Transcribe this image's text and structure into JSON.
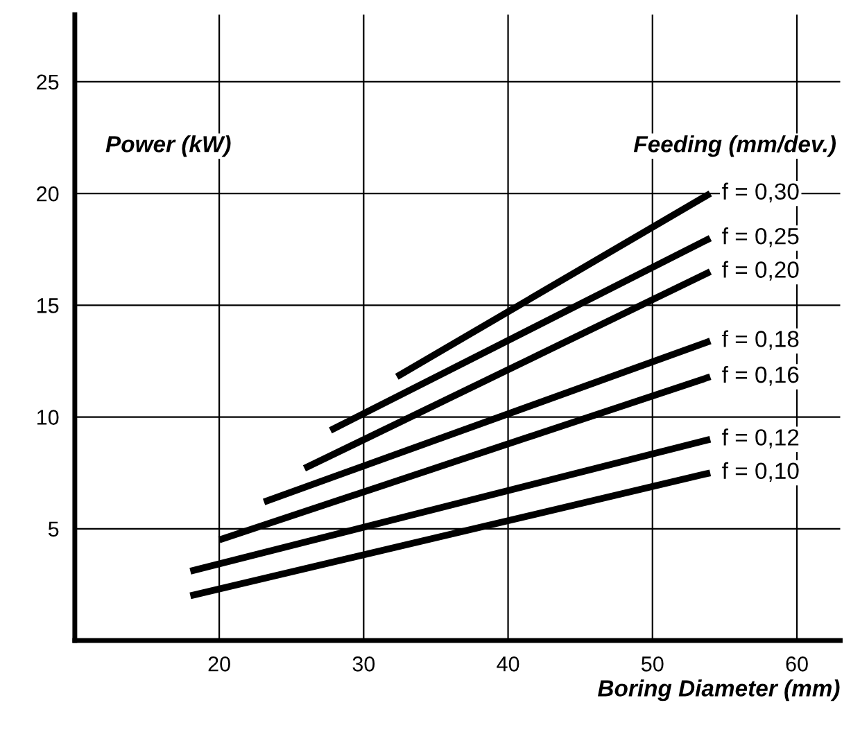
{
  "chart_data": {
    "type": "line",
    "xlabel": "Boring Diameter (mm)",
    "ylabel": "Power (kW)",
    "legend_title": "Feeding (mm/dev.)",
    "xlim": [
      10,
      63
    ],
    "ylim": [
      0,
      28
    ],
    "xticks": [
      20,
      30,
      40,
      50,
      60
    ],
    "yticks": [
      5,
      10,
      15,
      20,
      25
    ],
    "grid": true,
    "marker": "none",
    "line_style": "solid",
    "series": [
      {
        "name": "f = 0,30",
        "color": "#000000",
        "x": [
          32.3,
          54
        ],
        "values": [
          11.8,
          20.0
        ]
      },
      {
        "name": "f = 0,25",
        "color": "#000000",
        "x": [
          27.7,
          54
        ],
        "values": [
          9.4,
          18.0
        ]
      },
      {
        "name": "f = 0,20",
        "color": "#000000",
        "x": [
          25.9,
          54
        ],
        "values": [
          7.7,
          16.5
        ]
      },
      {
        "name": "f = 0,18",
        "color": "#000000",
        "x": [
          23.1,
          54
        ],
        "values": [
          6.2,
          13.4
        ]
      },
      {
        "name": "f = 0,16",
        "color": "#000000",
        "x": [
          20,
          54
        ],
        "values": [
          4.5,
          11.8
        ]
      },
      {
        "name": "f = 0,12",
        "color": "#000000",
        "x": [
          18,
          54
        ],
        "values": [
          3.1,
          9.0
        ]
      },
      {
        "name": "f = 0,10",
        "color": "#000000",
        "x": [
          18,
          54
        ],
        "values": [
          2.0,
          7.5
        ]
      }
    ]
  }
}
